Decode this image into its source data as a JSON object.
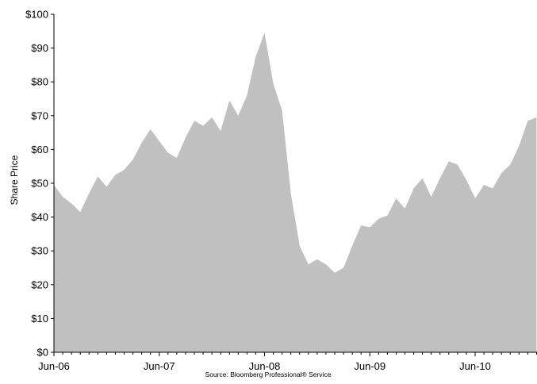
{
  "chart_data": {
    "type": "area",
    "title": "",
    "xlabel": "",
    "ylabel": "Share Price",
    "ylim": [
      0,
      100
    ],
    "xlim": [
      "2006-06",
      "2011-01"
    ],
    "y_ticks": [
      0,
      10,
      20,
      30,
      40,
      50,
      60,
      70,
      80,
      90,
      100
    ],
    "y_tick_labels": [
      "$0",
      "$10",
      "$20",
      "$30",
      "$40",
      "$50",
      "$60",
      "$70",
      "$80",
      "$90",
      "$100"
    ],
    "x_tick_labels": [
      "Jun-06",
      "Jun-07",
      "Jun-08",
      "Jun-09",
      "Jun-10"
    ],
    "x_tick_dates": [
      "2006-06",
      "2007-06",
      "2008-06",
      "2009-06",
      "2010-06"
    ],
    "grid": false,
    "fill_color": "#c0c0c0",
    "series": [
      {
        "x": [
          "2006-06",
          "2006-07",
          "2006-08",
          "2006-09",
          "2006-10",
          "2006-11",
          "2006-12",
          "2007-01",
          "2007-02",
          "2007-03",
          "2007-04",
          "2007-05",
          "2007-06",
          "2007-07",
          "2007-08",
          "2007-09",
          "2007-10",
          "2007-11",
          "2007-12",
          "2008-01",
          "2008-02",
          "2008-03",
          "2008-04",
          "2008-05",
          "2008-06",
          "2008-07",
          "2008-08",
          "2008-09",
          "2008-10",
          "2008-11",
          "2008-12",
          "2009-01",
          "2009-02",
          "2009-03",
          "2009-04",
          "2009-05",
          "2009-06",
          "2009-07",
          "2009-08",
          "2009-09",
          "2009-10",
          "2009-11",
          "2009-12",
          "2010-01",
          "2010-02",
          "2010-03",
          "2010-04",
          "2010-05",
          "2010-06",
          "2010-07",
          "2010-08",
          "2010-09",
          "2010-10",
          "2010-11",
          "2010-12",
          "2011-01"
        ],
        "y": [
          49.5,
          46,
          44,
          41.5,
          47,
          52,
          49,
          52.5,
          54,
          57,
          62,
          66,
          62.5,
          59,
          57.5,
          63.5,
          68.5,
          67,
          69.5,
          65.5,
          74.5,
          70,
          76,
          87.5,
          94.5,
          79.5,
          71.5,
          47,
          31.5,
          26,
          27.5,
          26,
          23.5,
          25,
          31.5,
          37.5,
          37,
          39.5,
          40.5,
          45.5,
          42.5,
          48.5,
          51.5,
          46,
          51.5,
          56.5,
          55.5,
          51,
          45.5,
          49.5,
          48.5,
          53,
          55.5,
          61,
          68.5,
          69.5
        ]
      }
    ],
    "source": "Source: Bloomberg Professional® Service"
  }
}
